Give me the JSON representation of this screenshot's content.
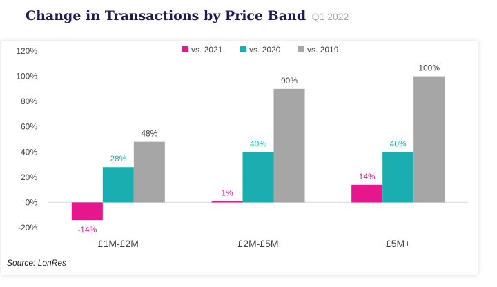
{
  "header": {
    "title": "Change in Transactions by Price Band",
    "subtitle": "Q1 2022"
  },
  "source": "Source: LonRes",
  "chart_data": {
    "type": "bar",
    "title": "Change in Transactions by Price Band",
    "subtitle": "Q1 2022",
    "xlabel": "",
    "ylabel": "",
    "categories": [
      "£1M-£2M",
      "£2M-£5M",
      "£5M+"
    ],
    "series": [
      {
        "name": "vs. 2021",
        "values": [
          -14,
          1,
          14
        ],
        "color": "#e6168c",
        "label_color": "#e6168c"
      },
      {
        "name": "vs. 2020",
        "values": [
          28,
          40,
          40
        ],
        "color": "#1aaeb1",
        "label_color": "#1aaeb1"
      },
      {
        "name": "vs. 2019",
        "values": [
          48,
          90,
          100
        ],
        "color": "#a6a6a6",
        "label_color": "#404040"
      }
    ],
    "ylim": [
      -20,
      120
    ],
    "yticks": [
      120,
      100,
      80,
      60,
      40,
      20,
      0,
      -20
    ],
    "ytick_labels": [
      "120%",
      "100%",
      "80%",
      "60%",
      "40%",
      "20%",
      "0%",
      "-20%"
    ],
    "value_suffix": "%",
    "grid": false,
    "legend_position": "top"
  }
}
